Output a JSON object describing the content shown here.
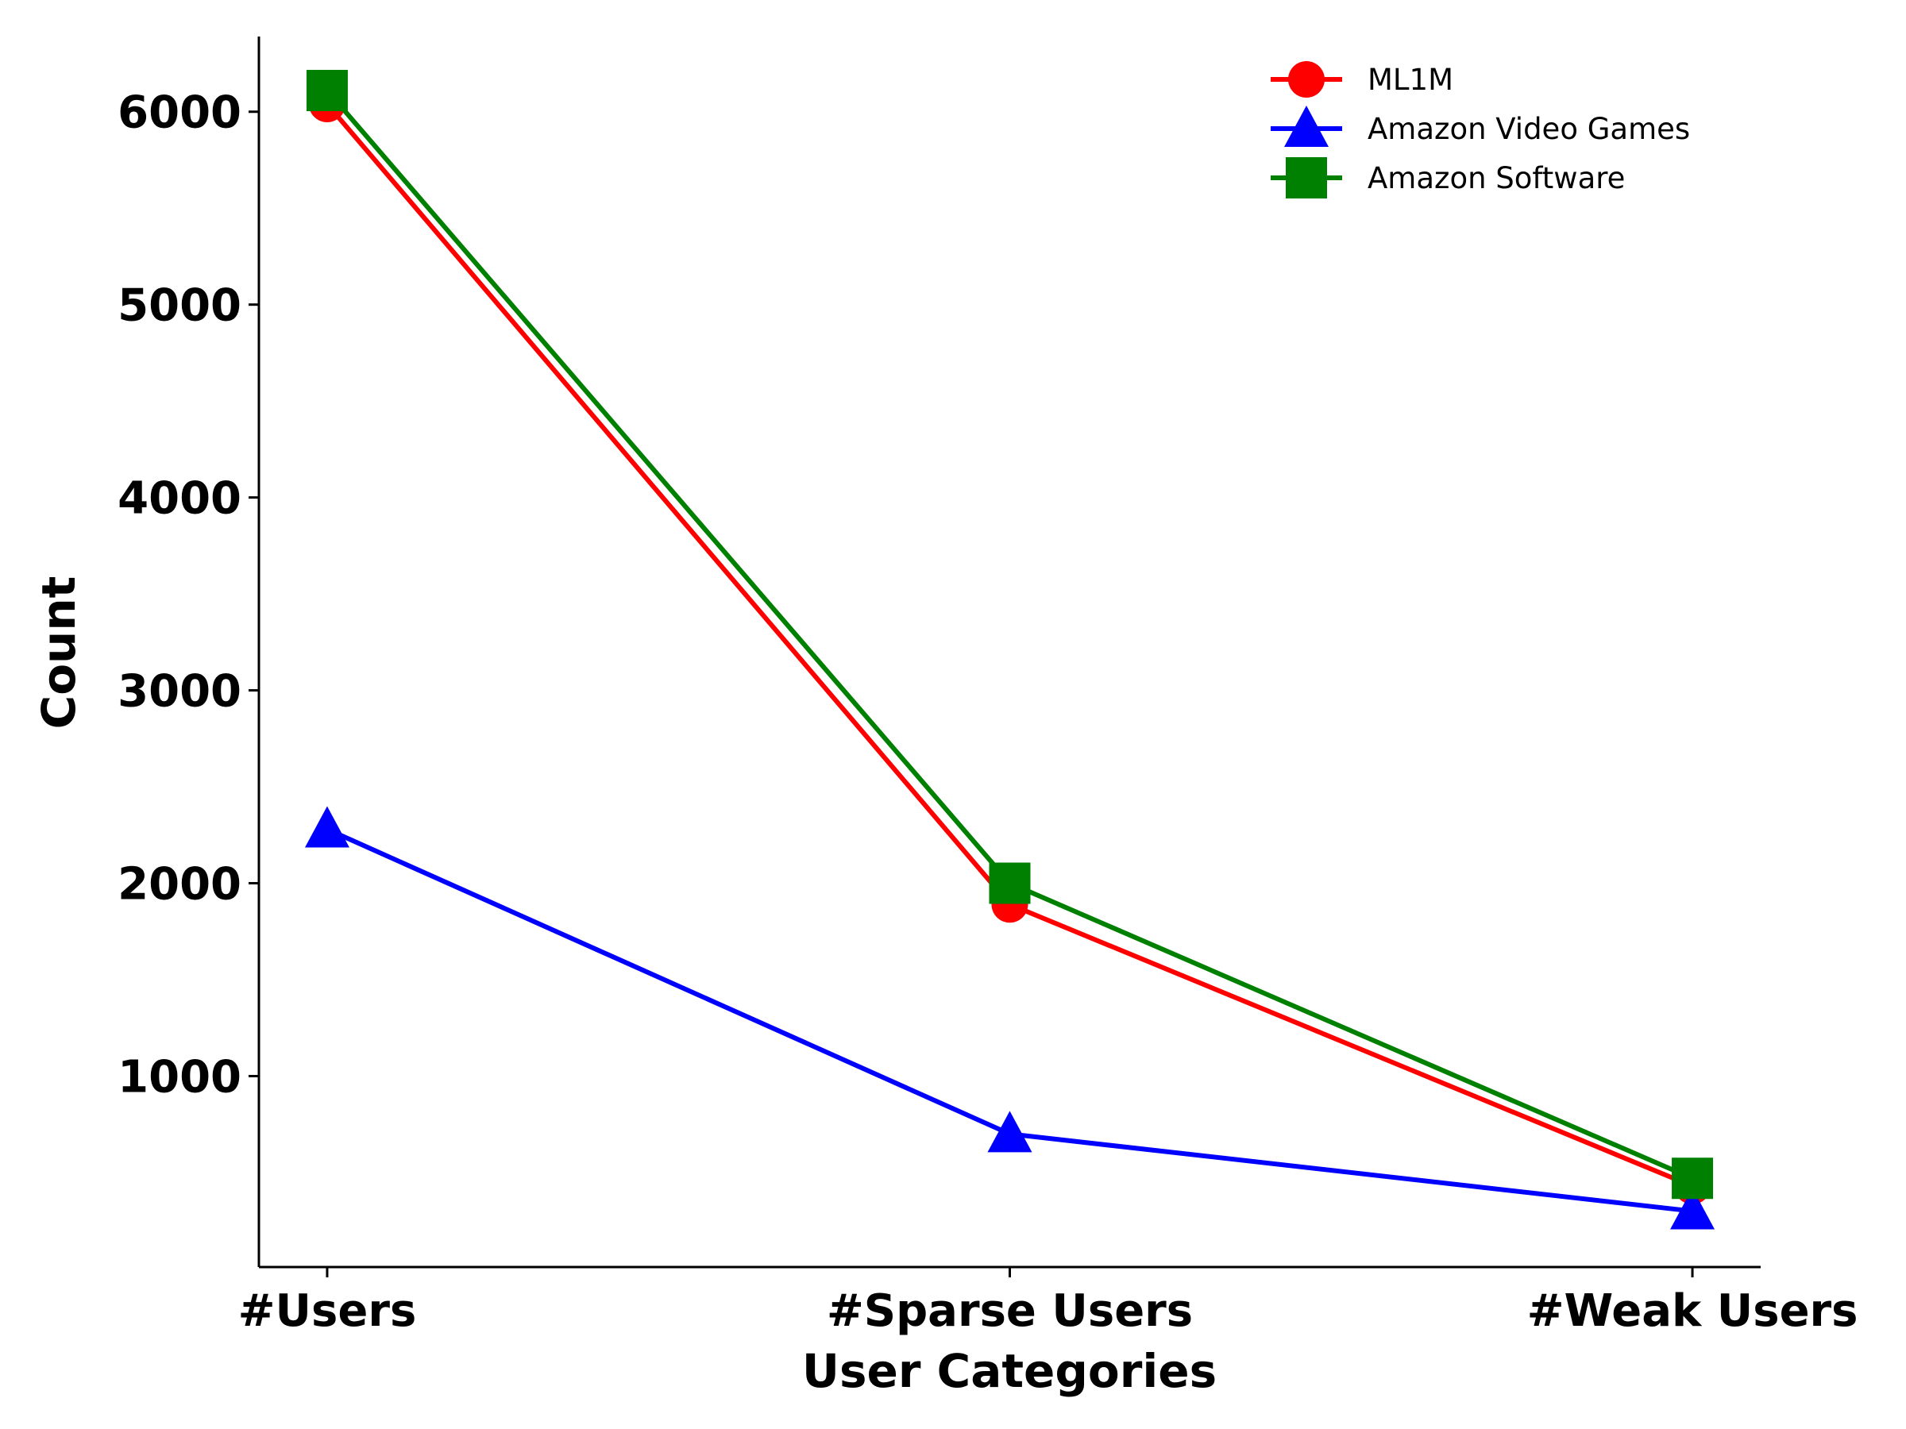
{
  "chart_data": {
    "type": "line",
    "title": "",
    "xlabel": "User Categories",
    "ylabel": "Count",
    "categories": [
      "#Users",
      "#Sparse Users",
      "#Weak Users"
    ],
    "series": [
      {
        "name": "ML1M",
        "color": "#ff0000",
        "marker": "circle",
        "values": [
          6040,
          1890,
          430
        ]
      },
      {
        "name": "Amazon Video Games",
        "color": "#0000ff",
        "marker": "triangle",
        "values": [
          2280,
          700,
          300
        ]
      },
      {
        "name": "Amazon Software",
        "color": "#008000",
        "marker": "square",
        "values": [
          6110,
          2000,
          470
        ]
      }
    ],
    "yticks": [
      1000,
      2000,
      3000,
      4000,
      5000,
      6000
    ],
    "ylim": [
      10,
      6390
    ],
    "xlim": [
      -0.1,
      2.1
    ],
    "grid": false,
    "legend_position": "top-right"
  }
}
